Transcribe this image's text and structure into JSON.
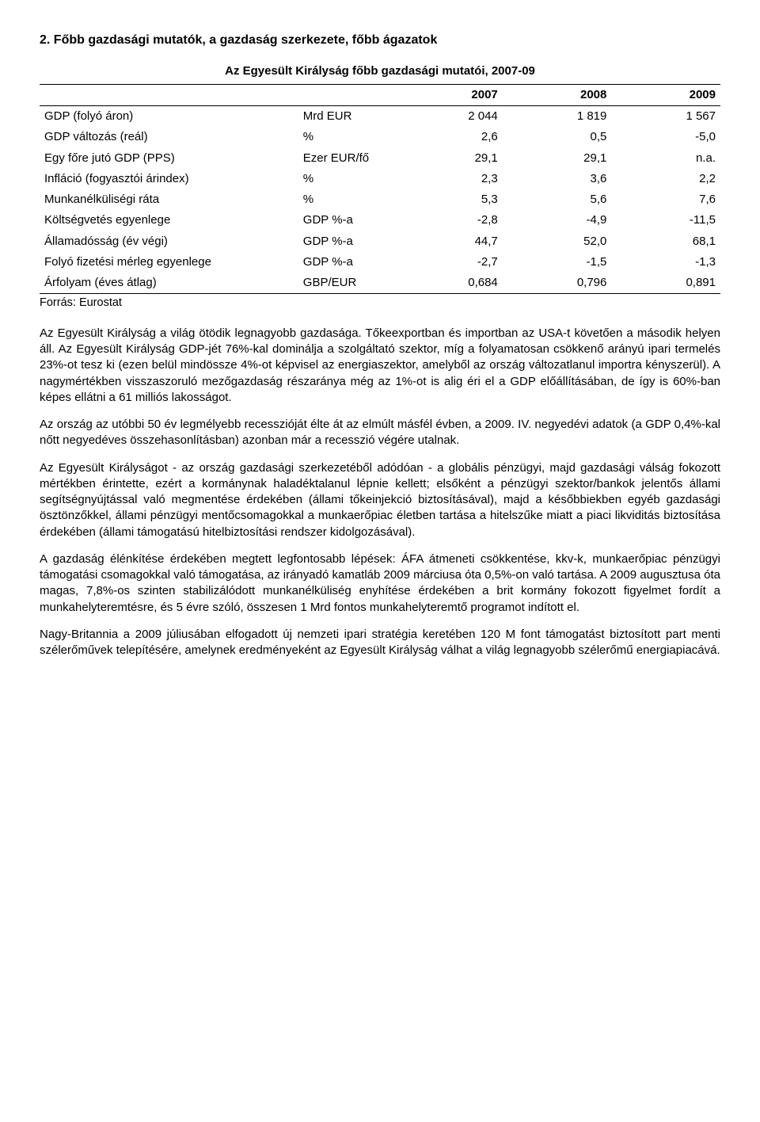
{
  "section_heading": "2. Főbb gazdasági mutatók, a gazdaság szerkezete, főbb ágazatok",
  "table": {
    "title": "Az Egyesült Királyság főbb gazdasági mutatói, 2007-09",
    "years": [
      "2007",
      "2008",
      "2009"
    ],
    "rows": [
      {
        "label": "GDP (folyó áron)",
        "unit": "Mrd EUR",
        "v": [
          "2 044",
          "1 819",
          "1 567"
        ]
      },
      {
        "label": "GDP változás (reál)",
        "unit": "%",
        "v": [
          "2,6",
          "0,5",
          "-5,0"
        ]
      },
      {
        "label": "Egy főre jutó GDP (PPS)",
        "unit": "Ezer EUR/fő",
        "v": [
          "29,1",
          "29,1",
          "n.a."
        ]
      },
      {
        "label": "Infláció (fogyasztói árindex)",
        "unit": "%",
        "v": [
          "2,3",
          "3,6",
          "2,2"
        ]
      },
      {
        "label": "Munkanélküliségi ráta",
        "unit": "%",
        "v": [
          "5,3",
          "5,6",
          "7,6"
        ]
      },
      {
        "label": "Költségvetés egyenlege",
        "unit": "GDP %-a",
        "v": [
          "-2,8",
          "-4,9",
          "-11,5"
        ]
      },
      {
        "label": "Államadósság (év végi)",
        "unit": "GDP %-a",
        "v": [
          "44,7",
          "52,0",
          "68,1"
        ]
      },
      {
        "label": "Folyó fizetési mérleg egyenlege",
        "unit": "GDP %-a",
        "v": [
          "-2,7",
          "-1,5",
          "-1,3"
        ]
      },
      {
        "label": "Árfolyam (éves átlag)",
        "unit": "GBP/EUR",
        "v": [
          "0,684",
          "0,796",
          "0,891"
        ]
      }
    ],
    "source": "Forrás: Eurostat"
  },
  "paragraphs": [
    "Az Egyesült Királyság a világ ötödik legnagyobb gazdasága. Tőkeexportban és importban az USA-t követően a második helyen áll. Az Egyesült Királyság GDP-jét 76%-kal dominálja a szolgáltató szektor, míg a folyamatosan csökkenő arányú ipari termelés 23%-ot tesz ki (ezen belül mindössze 4%-ot képvisel az energiaszektor, amelyből az ország változatlanul importra kényszerül). A nagymértékben visszaszoruló mezőgazdaság részaránya még az 1%-ot is alig éri el a GDP előállításában, de így is 60%-ban képes ellátni a 61 milliós lakosságot.",
    "Az ország az utóbbi 50 év legmélyebb recesszióját élte át az elmúlt másfél évben, a 2009. IV. negyedévi adatok (a GDP 0,4%-kal nőtt negyedéves összehasonlításban) azonban már a recesszió végére utalnak.",
    "Az Egyesült Királyságot - az ország gazdasági szerkezetéből adódóan - a globális pénzügyi, majd gazdasági válság fokozott mértékben érintette, ezért a kormánynak haladéktalanul lépnie kellett; elsőként a pénzügyi szektor/bankok jelentős állami segítségnyújtással való megmentése érdekében (állami tőkeinjekció biztosításával), majd a későbbiekben egyéb gazdasági ösztönzőkkel, állami pénzügyi mentőcsomagokkal a munkaerőpiac életben tartása a hitelszűke miatt a piaci likviditás biztosítása érdekében (állami támogatású hitelbiztosítási rendszer kidolgozásával).",
    "A gazdaság élénkítése érdekében megtett legfontosabb lépések: ÁFA átmeneti csökkentése, kkv-k, munkaerőpiac pénzügyi támogatási csomagokkal való támogatása, az irányadó kamatláb 2009 márciusa óta 0,5%-on való tartása. A 2009 augusztusa óta magas, 7,8%-os szinten stabilizálódott munkanélküliség enyhítése érdekében a brit kormány fokozott figyelmet fordít a munkahelyteremtésre, és 5 évre szóló, összesen 1 Mrd fontos munkahelyteremtő programot indított el.",
    "Nagy-Britannia a 2009 júliusában elfogadott új nemzeti ipari stratégia keretében 120 M font támogatást biztosított part menti szélerőművek telepítésére, amelynek eredményeként az Egyesült Királyság válhat a világ legnagyobb szélerőmű energiapiacává."
  ]
}
